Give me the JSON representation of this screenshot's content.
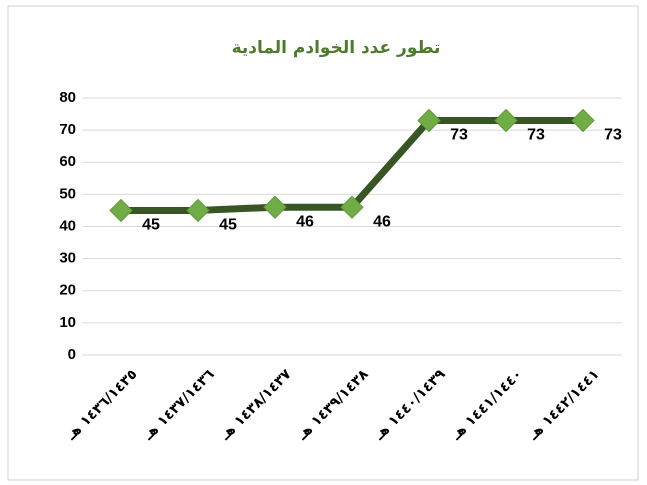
{
  "chart_data": {
    "type": "line",
    "title": "تطور عدد الخوادم المادية",
    "categories": [
      "١٤٣٦/١٤٣٥ هـ",
      "١٤٣٧/١٤٣٦ هـ",
      "١٤٣٨/١٤٣٧ هـ",
      "١٤٣٩/١٤٣٨ هـ",
      "١٤٤٠/١٤٣٩ هـ",
      "١٤٤١/١٤٤٠ هـ",
      "١٤٤٢/١٤٤١ هـ"
    ],
    "series": [
      {
        "name": "عدد الخوادم",
        "color": "#375623",
        "marker_color": "#70ad47",
        "values": [
          45,
          45,
          46,
          46,
          73,
          73,
          73
        ]
      }
    ],
    "ylim": [
      0,
      80
    ],
    "yticks": [
      0,
      10,
      20,
      30,
      40,
      50,
      60,
      70,
      80
    ],
    "grid": true
  }
}
